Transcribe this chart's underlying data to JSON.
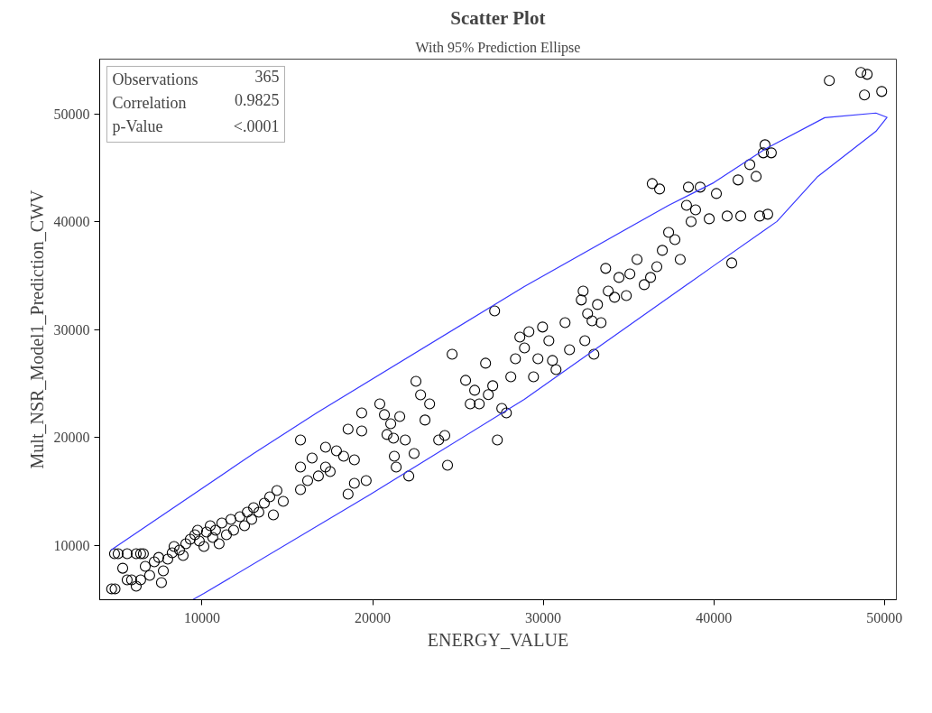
{
  "chart_data": {
    "type": "scatter",
    "title": "Scatter Plot",
    "subtitle": "With 95% Prediction Ellipse",
    "xlabel": "ENERGY_VALUE",
    "ylabel": "Mult_NSR_Model1_Prediction_CWV",
    "annotations": [
      "Observations",
      "365",
      "Correlation",
      "0.9825",
      "p-Value",
      "<.0001"
    ],
    "xlim": [
      4000,
      50700
    ],
    "ylim": [
      4980,
      55100
    ],
    "xticks": [
      10000,
      20000,
      30000,
      40000,
      50000
    ],
    "yticks": [
      10000,
      20000,
      30000,
      40000,
      50000
    ],
    "grid": false,
    "series": [
      {
        "marker": "circle",
        "color": "#000000",
        "x": [
          4700,
          4900,
          4870,
          5080,
          5610,
          6140,
          6400,
          6560,
          5350,
          5610,
          5870,
          6400,
          6140,
          6670,
          6930,
          7200,
          7460,
          7620,
          7730,
          7990,
          8250,
          8360,
          8680,
          8890,
          9050,
          9310,
          9580,
          9740,
          9840,
          10110,
          10260,
          10480,
          10630,
          10790,
          11000,
          11160,
          11430,
          11690,
          11850,
          12220,
          12490,
          12650,
          12910,
          13020,
          13330,
          13650,
          13970,
          14180,
          14390,
          14760,
          15770,
          15770,
          15770,
          16190,
          16450,
          16820,
          17240,
          17240,
          17510,
          17880,
          18300,
          18560,
          18560,
          18930,
          18930,
          19360,
          19360,
          19620,
          20420,
          20690,
          20840,
          21060,
          21220,
          21270,
          21380,
          21590,
          21910,
          22120,
          22430,
          22540,
          22810,
          23070,
          23340,
          23870,
          24230,
          24660,
          24390,
          25450,
          25720,
          25980,
          26250,
          26620,
          26780,
          27040,
          27150,
          27310,
          27570,
          27840,
          28100,
          28370,
          28630,
          28900,
          29160,
          29430,
          29690,
          29960,
          30330,
          30540,
          30750,
          31280,
          31540,
          32230,
          32340,
          32440,
          32600,
          32860,
          32970,
          33180,
          33390,
          33660,
          33810,
          34180,
          34440,
          34870,
          35080,
          35500,
          35920,
          36290,
          36390,
          36660,
          36820,
          36980,
          37350,
          37720,
          38030,
          38400,
          38510,
          38670,
          38930,
          39200,
          39730,
          40150,
          40780,
          41050,
          41420,
          41580,
          42110,
          42480,
          42690,
          42900,
          43160,
          43000,
          43370,
          46770,
          48620,
          48990,
          48830,
          49840
        ],
        "values": [
          5990,
          5990,
          9250,
          9250,
          9250,
          9250,
          9250,
          9250,
          7900,
          6820,
          6820,
          6820,
          6230,
          8080,
          7240,
          8500,
          8900,
          6570,
          7660,
          8740,
          9330,
          9920,
          9580,
          9080,
          10170,
          10590,
          11000,
          11420,
          10420,
          9920,
          11260,
          11840,
          10750,
          11420,
          10170,
          12090,
          11000,
          12430,
          11420,
          12680,
          11840,
          13100,
          12430,
          13520,
          13100,
          13930,
          14520,
          12850,
          15100,
          14100,
          19790,
          17280,
          15190,
          16030,
          18120,
          16450,
          19120,
          17280,
          16860,
          18790,
          18290,
          20800,
          14770,
          17950,
          15780,
          22300,
          20630,
          16030,
          23140,
          22140,
          20300,
          21300,
          19960,
          18290,
          17280,
          21970,
          19790,
          16450,
          18540,
          25230,
          23980,
          21640,
          23140,
          19790,
          20210,
          27740,
          17450,
          25320,
          23140,
          24400,
          23140,
          26910,
          24000,
          24820,
          31760,
          19790,
          22720,
          22300,
          25650,
          27320,
          29330,
          28320,
          29830,
          25650,
          27320,
          30260,
          29000,
          27160,
          26320,
          30670,
          28160,
          32770,
          33600,
          29000,
          31510,
          30840,
          27740,
          32350,
          30670,
          35700,
          33600,
          33020,
          34860,
          33180,
          35190,
          36530,
          34190,
          34860,
          43560,
          35860,
          43060,
          37370,
          39040,
          38370,
          36530,
          41550,
          43230,
          40040,
          41130,
          43230,
          40300,
          42640,
          40550,
          36200,
          43900,
          40550,
          45320,
          44230,
          40550,
          46410,
          40720,
          47160,
          46410,
          53110,
          53860,
          53690,
          51770,
          52100
        ]
      },
      {
        "type": "line",
        "color": "#3838ff",
        "x": [
          9470,
          10110,
          19890,
          28890,
          40000,
          43700,
          46100,
          49500,
          50150,
          49500,
          46500,
          43000,
          40000,
          37350,
          28890,
          16720,
          13020,
          4660
        ],
        "values": [
          5000,
          5560,
          14770,
          23560,
          35950,
          40050,
          44230,
          48400,
          49700,
          50100,
          49670,
          46750,
          43650,
          41550,
          34020,
          22300,
          18540,
          9580
        ]
      }
    ]
  }
}
